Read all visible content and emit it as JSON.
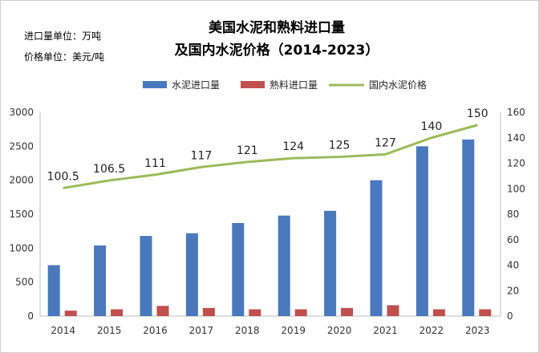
{
  "units": {
    "import_unit": "进口量单位：万吨",
    "price_unit": "价格单位：美元/吨"
  },
  "colors": {
    "cement_import": "#4a78bd",
    "clinker_import": "#c0504d",
    "price_line": "#9bbb59"
  },
  "chart_data": {
    "type": "bar",
    "title_line1": "美国水泥和熟料进口量",
    "title_line2": "及国内水泥价格（2014-2023）",
    "categories": [
      "2014",
      "2015",
      "2016",
      "2017",
      "2018",
      "2019",
      "2020",
      "2021",
      "2022",
      "2023"
    ],
    "series": [
      {
        "name": "水泥进口量",
        "type": "bar",
        "axis": "left",
        "values": [
          750,
          1040,
          1180,
          1220,
          1370,
          1480,
          1550,
          2000,
          2500,
          2600
        ]
      },
      {
        "name": "熟料进口量",
        "type": "bar",
        "axis": "left",
        "values": [
          80,
          100,
          150,
          120,
          100,
          100,
          120,
          160,
          100,
          100
        ]
      },
      {
        "name": "国内水泥价格",
        "type": "line",
        "axis": "right",
        "values": [
          100.5,
          106.5,
          111,
          117,
          121,
          124,
          125,
          127,
          140,
          150
        ],
        "labels": [
          "100.5",
          "106.5",
          "111",
          "117",
          "121",
          "124",
          "125",
          "127",
          "140",
          "150"
        ]
      }
    ],
    "y_left": {
      "min": 0,
      "max": 3000,
      "ticks": [
        "0",
        "500",
        "1000",
        "1500",
        "2000",
        "2500",
        "3000"
      ]
    },
    "y_right": {
      "min": 0,
      "max": 160,
      "ticks": [
        "0",
        "20",
        "40",
        "60",
        "80",
        "100",
        "120",
        "140",
        "160"
      ]
    },
    "legend_position": "top",
    "grid": false
  }
}
